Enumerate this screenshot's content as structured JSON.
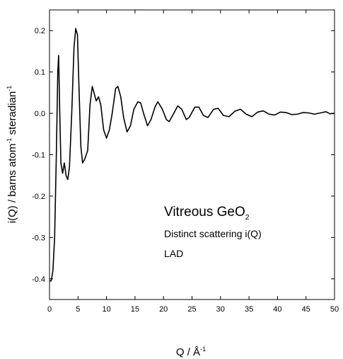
{
  "chart_data": {
    "type": "line",
    "ylabel": [
      {
        "text": "i(Q) / barns atom"
      },
      {
        "sup": "-1"
      },
      {
        "text": " steradian"
      },
      {
        "sup": "-1"
      }
    ],
    "xlabel": [
      {
        "text": "Q /  Å"
      },
      {
        "sup": "-1"
      }
    ],
    "annotations": [
      {
        "text": "Vitreous GeO",
        "sub": "2"
      },
      {
        "text": "Distinct scattering i(Q)"
      },
      {
        "text": "LAD"
      }
    ],
    "xlim": [
      0,
      50
    ],
    "ylim": [
      -0.45,
      0.25
    ],
    "xticks": [
      0,
      5,
      10,
      15,
      20,
      25,
      30,
      35,
      40,
      45,
      50
    ],
    "yticks": [
      -0.4,
      -0.3,
      -0.2,
      -0.1,
      {
        "value": 0,
        "label": "0.0"
      },
      0.1,
      0.2
    ],
    "series": [
      {
        "color": "#000000",
        "x": [
          0,
          0.3,
          0.6,
          0.9,
          1.2,
          1.45,
          1.6,
          1.8,
          2.0,
          2.3,
          2.6,
          2.9,
          3.2,
          3.5,
          3.9,
          4.3,
          4.6,
          4.9,
          5.2,
          5.5,
          5.8,
          6.2,
          6.7,
          7.1,
          7.5,
          7.8,
          8.2,
          8.6,
          9.0,
          9.5,
          10,
          10.5,
          11,
          11.6,
          12,
          12.5,
          13,
          13.6,
          14.2,
          14.8,
          15.5,
          16,
          16.5,
          17.2,
          17.8,
          18.5,
          19,
          19.8,
          20.5,
          21,
          21.8,
          22.5,
          23.2,
          24,
          24.5,
          25.5,
          26.2,
          27,
          27.8,
          28.8,
          29.6,
          30.5,
          31.5,
          32.5,
          33.5,
          34.5,
          35.5,
          36.5,
          37.5,
          38.5,
          39.5,
          40.5,
          41.5,
          42.5,
          43.5,
          44.5,
          45.5,
          46.5,
          47.5,
          48.5,
          49.2,
          50
        ],
        "values": [
          -0.405,
          -0.405,
          -0.38,
          -0.3,
          -0.1,
          0.1,
          0.14,
          0.0,
          -0.12,
          -0.145,
          -0.12,
          -0.15,
          -0.16,
          -0.13,
          0.0,
          0.16,
          0.205,
          0.19,
          0.05,
          -0.08,
          -0.12,
          -0.11,
          -0.09,
          0.02,
          0.065,
          0.05,
          0.03,
          0.04,
          0.02,
          -0.04,
          -0.06,
          -0.04,
          0.0,
          0.06,
          0.065,
          0.04,
          -0.01,
          -0.045,
          -0.03,
          0.01,
          0.028,
          0.025,
          0.0,
          -0.03,
          -0.015,
          0.015,
          0.028,
          0.01,
          -0.015,
          -0.02,
          0.0,
          0.018,
          0.01,
          -0.015,
          -0.01,
          0.015,
          0.015,
          -0.005,
          -0.01,
          0.01,
          0.012,
          -0.005,
          -0.008,
          0.005,
          0.01,
          -0.002,
          -0.008,
          0.003,
          0.006,
          -0.002,
          -0.004,
          0.003,
          0.002,
          -0.003,
          -0.002,
          0.002,
          0.001,
          -0.002,
          0.001,
          0.004,
          -0.001,
          0
        ]
      }
    ]
  }
}
